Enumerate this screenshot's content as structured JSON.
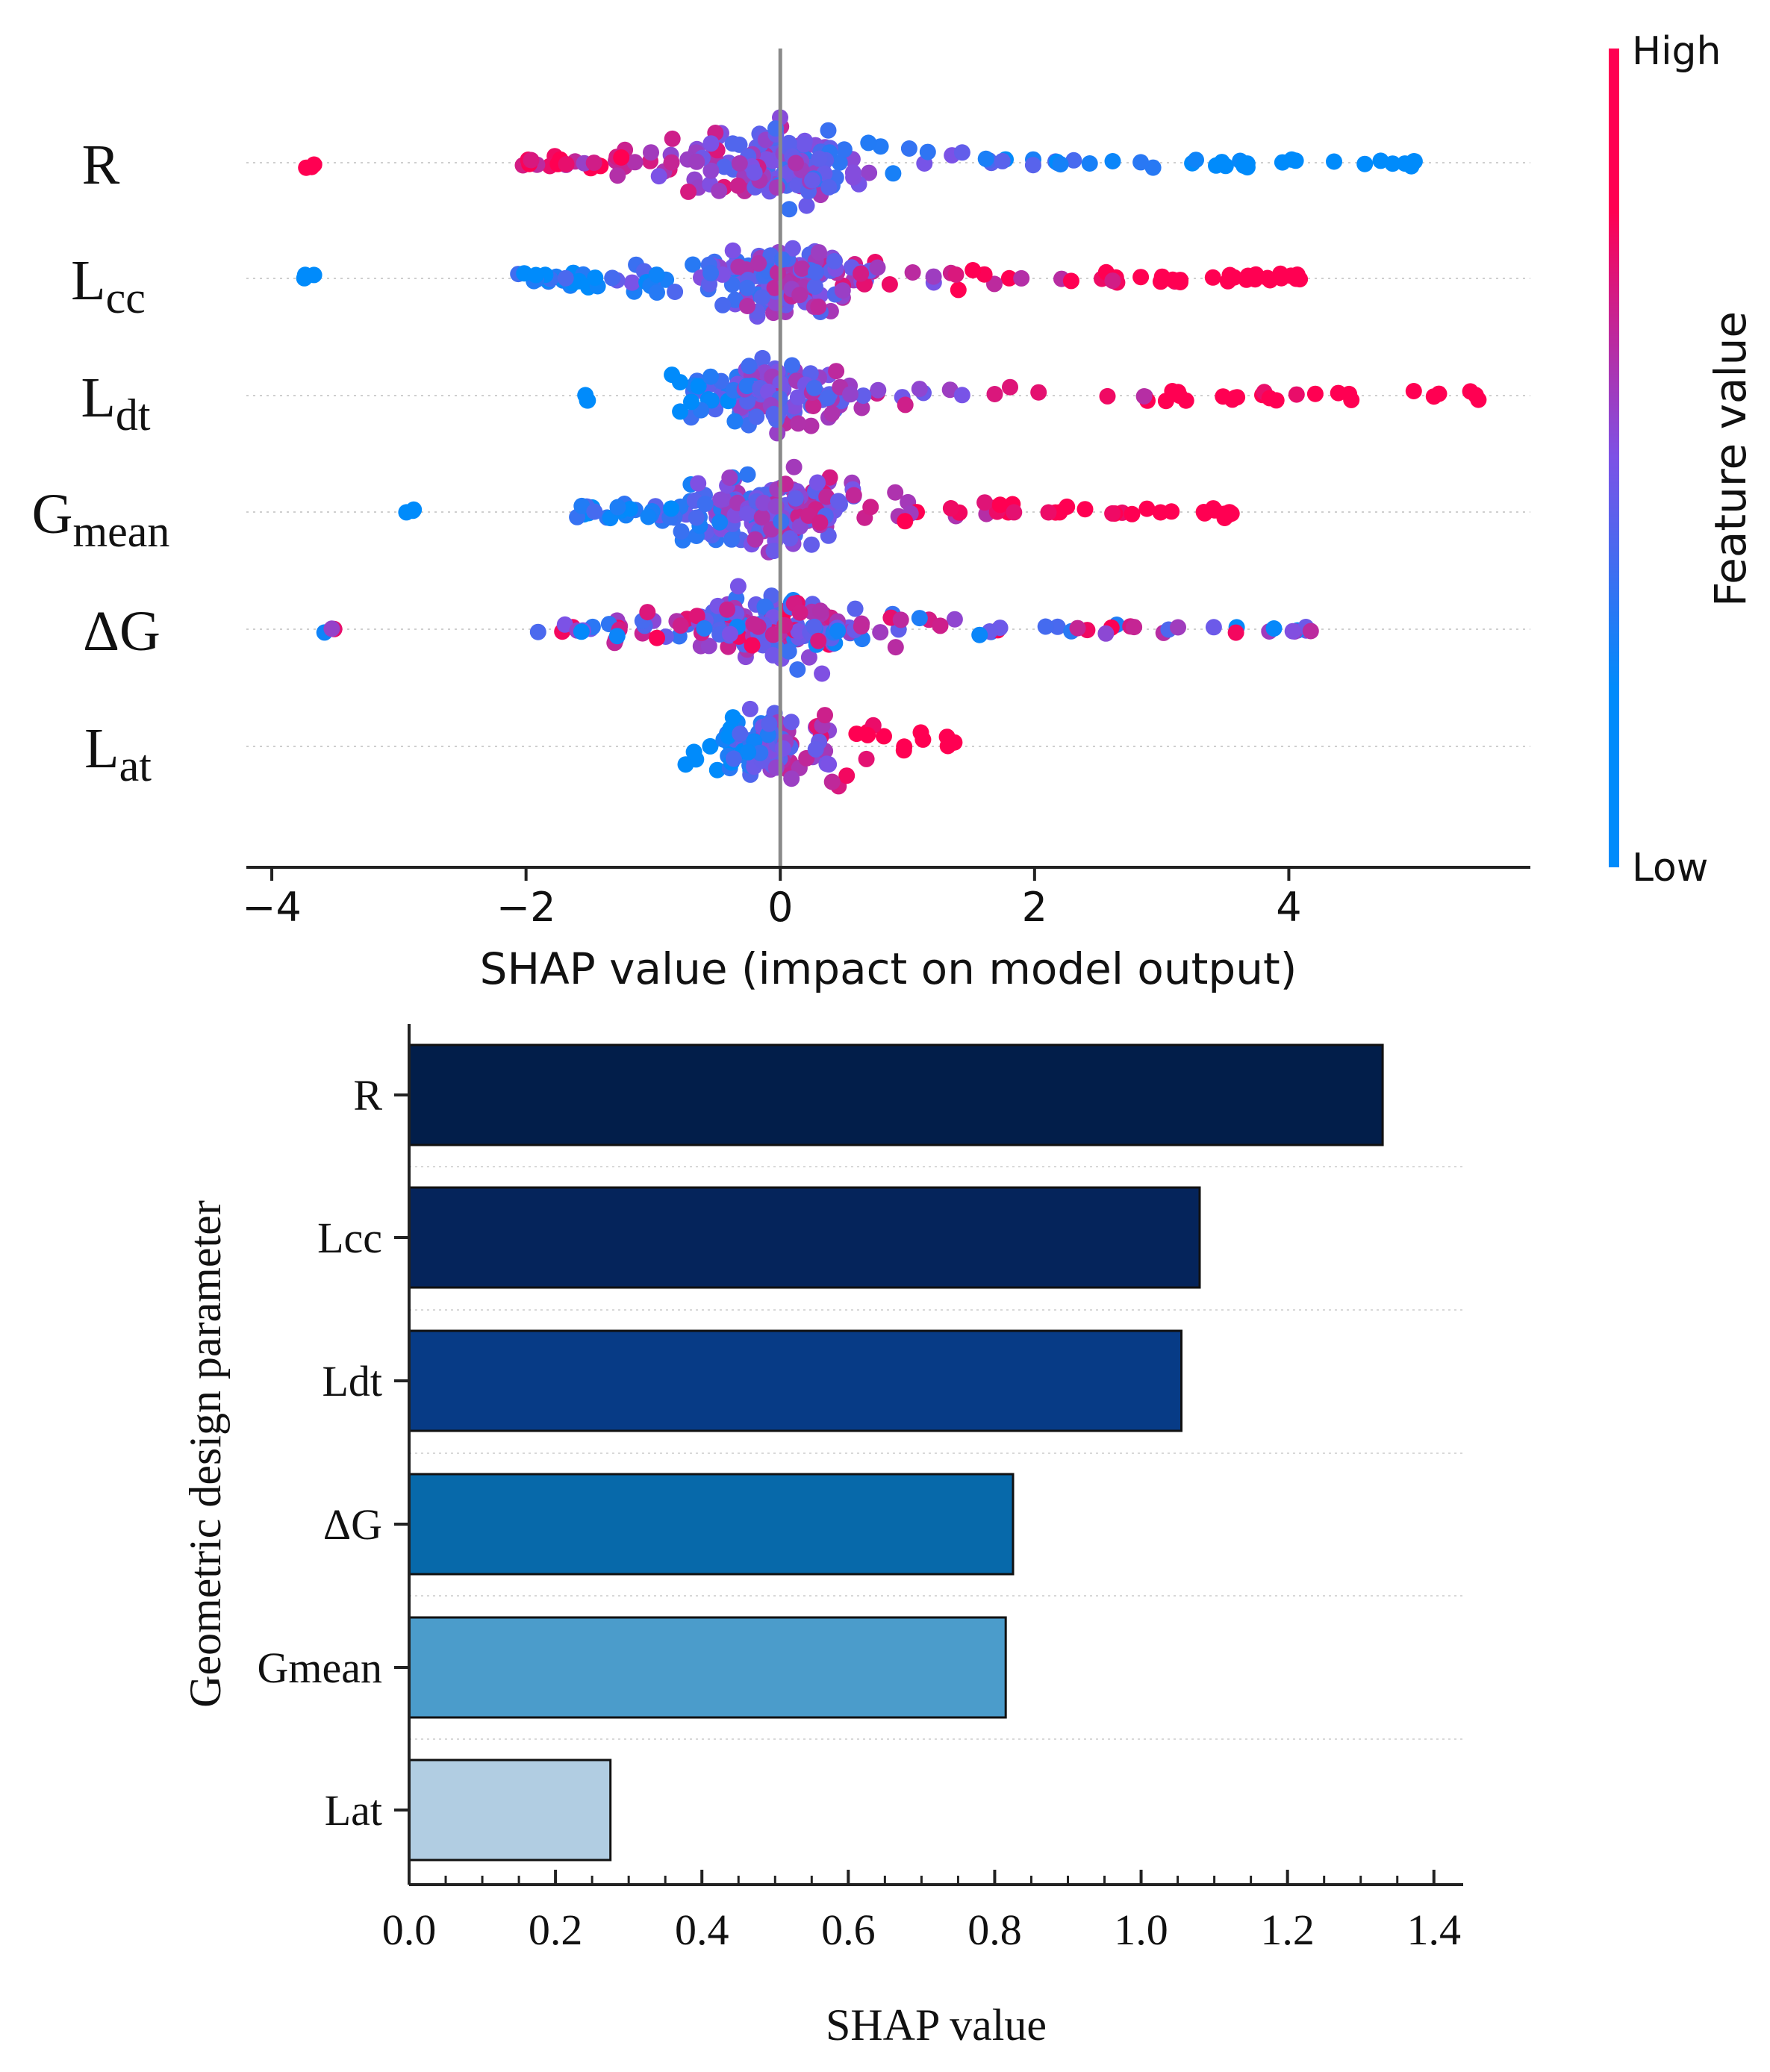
{
  "chart_data": [
    {
      "type": "scatter",
      "subtype": "shap-beeswarm",
      "features": [
        {
          "name": "R",
          "sub": ""
        },
        {
          "name": "L",
          "sub": "cc"
        },
        {
          "name": "L",
          "sub": "dt"
        },
        {
          "name": "G",
          "sub": "mean"
        },
        {
          "name": "ΔG",
          "sub": ""
        },
        {
          "name": "L",
          "sub": "at"
        }
      ],
      "feature_ranges": [
        {
          "min": -3.75,
          "max": 5.0
        },
        {
          "min": -3.75,
          "max": 4.1
        },
        {
          "min": -1.55,
          "max": 5.5
        },
        {
          "min": -2.95,
          "max": 3.55
        },
        {
          "min": -3.6,
          "max": 4.2
        },
        {
          "min": -0.75,
          "max": 1.4
        }
      ],
      "xlabel": "SHAP value (impact on model output)",
      "xticks": [
        -4,
        -2,
        0,
        2,
        4
      ],
      "xtick_labels": [
        "−4",
        "−2",
        "0",
        "2",
        "4"
      ],
      "xlim": [
        -4.2,
        5.9
      ],
      "colorbar": {
        "label": "Feature value",
        "high": "High",
        "low": "Low",
        "colors": [
          "#008bfb",
          "#7c52e6",
          "#ff0052"
        ]
      }
    },
    {
      "type": "bar",
      "orientation": "horizontal",
      "categories": [
        "R",
        "Lcc",
        "Ldt",
        "ΔG",
        "Gmean",
        "Lat"
      ],
      "values": [
        1.33,
        1.08,
        1.055,
        0.825,
        0.815,
        0.275
      ],
      "colors": [
        "#021e4a",
        "#05245b",
        "#073b86",
        "#0769aa",
        "#4b9ccb",
        "#b1cde2"
      ],
      "xlabel": "SHAP value",
      "ylabel": "Geometric design parameter",
      "xticks": [
        0.0,
        0.2,
        0.4,
        0.6,
        0.8,
        1.0,
        1.2,
        1.4
      ],
      "xtick_labels": [
        "0.0",
        "0.2",
        "0.4",
        "0.6",
        "0.8",
        "1.0",
        "1.2",
        "1.4"
      ],
      "xlim": [
        0,
        1.44
      ]
    }
  ]
}
